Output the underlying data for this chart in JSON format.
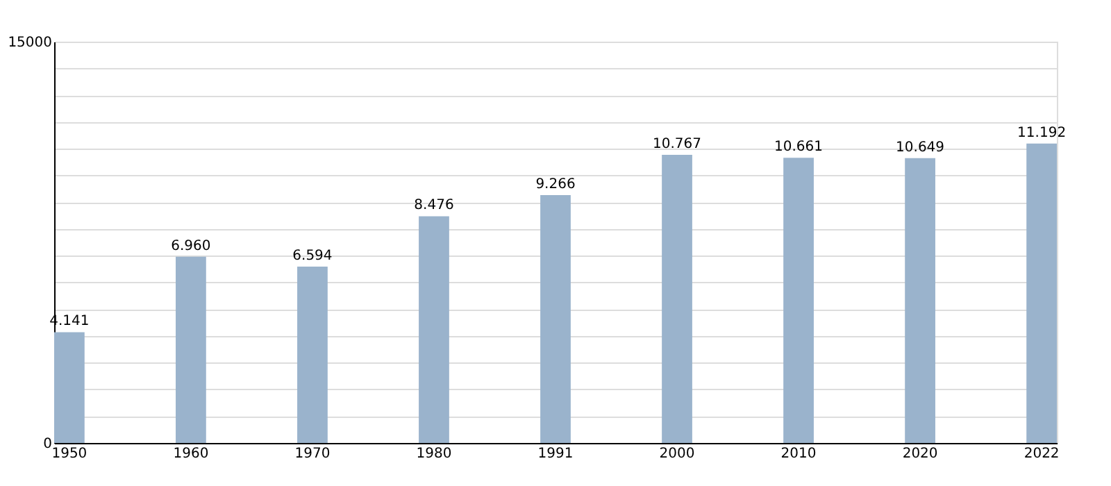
{
  "chart_data": {
    "type": "bar",
    "categories": [
      "1950",
      "1960",
      "1970",
      "1980",
      "1991",
      "2000",
      "2010",
      "2020",
      "2022"
    ],
    "values": [
      4141,
      6960,
      6594,
      8476,
      9266,
      10767,
      10661,
      10649,
      11192
    ],
    "value_labels": [
      "4.141",
      "6.960",
      "6.594",
      "8.476",
      "9.266",
      "10.767",
      "10.661",
      "10.649",
      "11.192"
    ],
    "color": "#9ab3cc",
    "ylim": [
      0,
      15000
    ],
    "yticks": [
      0,
      {
        "value": 1000,
        "label": null
      },
      {
        "value": 2000,
        "label": null
      },
      {
        "value": 3000,
        "label": null
      },
      {
        "value": 4000,
        "label": null
      },
      {
        "value": 5000,
        "label": null
      },
      {
        "value": 6000,
        "label": null
      },
      {
        "value": 7000,
        "label": null
      },
      {
        "value": 8000,
        "label": null
      },
      {
        "value": 9000,
        "label": null
      },
      {
        "value": 10000,
        "label": null
      },
      {
        "value": 11000,
        "label": null
      },
      {
        "value": 12000,
        "label": null
      },
      {
        "value": 13000,
        "label": null
      },
      {
        "value": 14000,
        "label": null
      },
      15000
    ],
    "grid": "y"
  }
}
